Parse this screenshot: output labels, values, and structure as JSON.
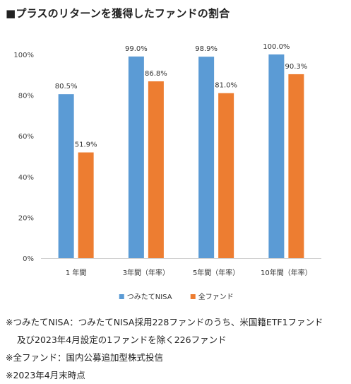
{
  "title": "■プラスのリターンを獲得したファンドの割合",
  "chart_data": {
    "type": "bar",
    "categories": [
      "1 年間",
      "3年間（年率）",
      "5年間（年率）",
      "10年間（年率）"
    ],
    "series": [
      {
        "name": "つみたてNISA",
        "values": [
          80.5,
          99.0,
          98.9,
          100.0
        ],
        "labels": [
          "80.5%",
          "99.0%",
          "98.9%",
          "100.0%"
        ],
        "color": "#5b9bd5"
      },
      {
        "name": "全ファンド",
        "values": [
          51.9,
          86.8,
          81.0,
          90.3
        ],
        "labels": [
          "51.9%",
          "86.8%",
          "81.0%",
          "90.3%"
        ],
        "color": "#ed7d31"
      }
    ],
    "ylim": [
      0,
      100
    ],
    "yticks": [
      0,
      20,
      40,
      60,
      80,
      100
    ],
    "ytick_labels": [
      "0%",
      "20%",
      "40%",
      "60%",
      "80%",
      "100%"
    ],
    "grid": false,
    "legend_position": "bottom"
  },
  "notes": [
    "※つみたてNISA：つみたてNISA採用228ファンドのうち、米国籍ETF1ファンド",
    "及び2023年4月設定の1ファンドを除く226ファンド",
    "※全ファンド：国内公募追加型株式投信",
    "※2023年4月末時点"
  ]
}
